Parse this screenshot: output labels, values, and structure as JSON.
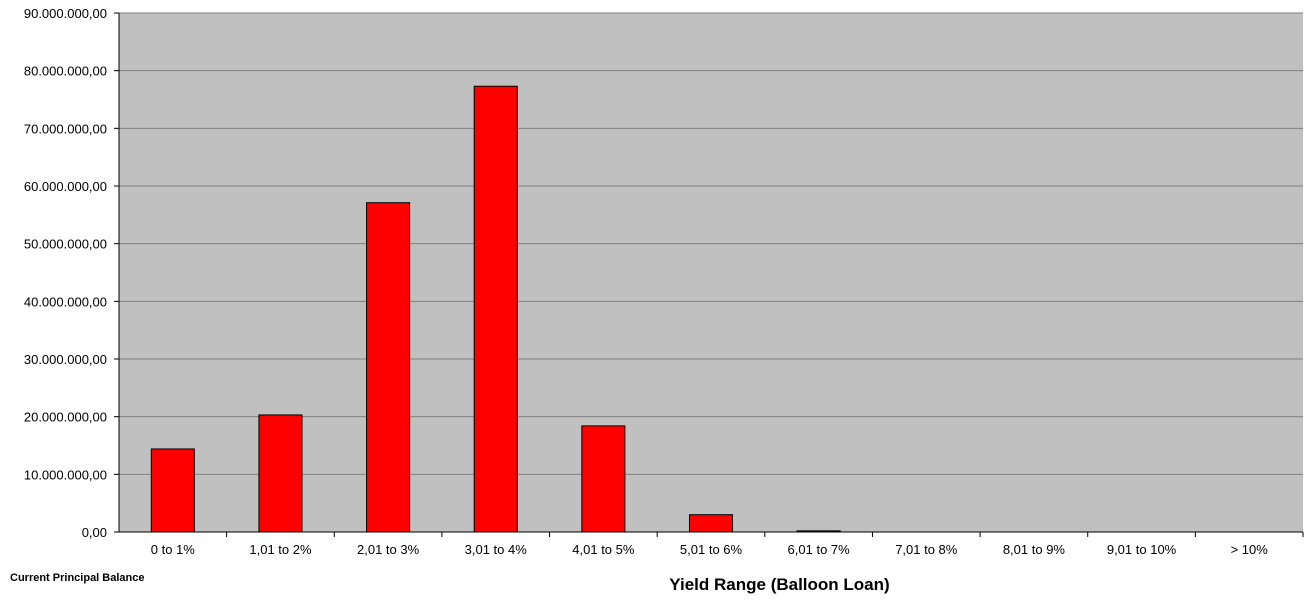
{
  "chart_data": {
    "type": "bar",
    "title": "",
    "xlabel": "Yield Range (Balloon Loan)",
    "ylabel": "Current Principal  Balance",
    "categories": [
      "0 to 1%",
      "1,01 to 2%",
      "2,01 to 3%",
      "3,01 to 4%",
      "4,01 to 5%",
      "5,01 to 6%",
      "6,01 to 7%",
      "7,01 to 8%",
      "8,01 to 9%",
      "9,01 to 10%",
      "> 10%"
    ],
    "values": [
      14400000,
      20300000,
      57100000,
      77300000,
      18400000,
      3000000,
      200000,
      50000,
      0,
      0,
      0
    ],
    "ylim": [
      0,
      90000000
    ],
    "yticks": [
      "0,00",
      "10.000.000,00",
      "20.000.000,00",
      "30.000.000,00",
      "40.000.000,00",
      "50.000.000,00",
      "60.000.000,00",
      "70.000.000,00",
      "80.000.000,00",
      "90.000.000,00"
    ],
    "grid": true,
    "legend": "none",
    "colors": {
      "bar": "#ff0000",
      "plot_bg": "#c0c0c0",
      "grid": "#808080"
    }
  }
}
